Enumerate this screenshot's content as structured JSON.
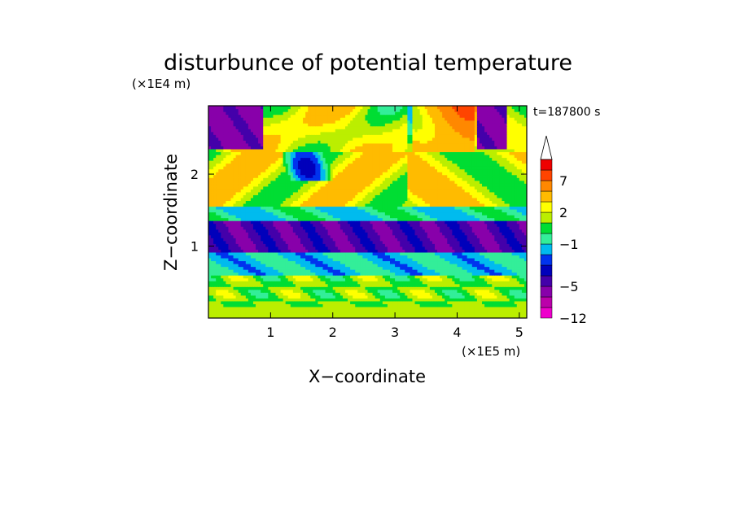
{
  "chart_data": {
    "type": "heatmap",
    "title": "disturbunce of potential temperature",
    "xlabel": "X−coordinate",
    "ylabel": "Z−coordinate",
    "x_unit": "(×1E5 m)",
    "y_unit": "(×1E4 m)",
    "time_label": "t=187800 s",
    "xlim": [
      0,
      5.12
    ],
    "ylim": [
      0,
      2.95
    ],
    "x_ticks": [
      1,
      2,
      3,
      4,
      5
    ],
    "x_tick_labels": [
      "1",
      "2",
      "3",
      "4",
      "5"
    ],
    "y_ticks": [
      1,
      2
    ],
    "y_tick_labels": [
      "1",
      "2"
    ],
    "colorbar": {
      "levels": [
        -12,
        -9,
        -7,
        -5,
        -4,
        -3,
        -2,
        -1,
        0,
        1,
        2,
        3,
        5,
        7,
        9,
        11
      ],
      "tick_labels": [
        "−12",
        "−5",
        "−1",
        "2",
        "7"
      ],
      "tick_values": [
        -12,
        -5,
        -1,
        2,
        7
      ],
      "colors": [
        "#ee00cc",
        "#bb00aa",
        "#8800aa",
        "#4400aa",
        "#0000bb",
        "#0033ee",
        "#00bbee",
        "#33ee99",
        "#00dd33",
        "#bbee00",
        "#ffff00",
        "#ffbb00",
        "#ff8800",
        "#ff4400",
        "#ee0000",
        "#ffaaaa",
        "#ffffff"
      ],
      "extend_top": true
    },
    "field_description_bands": [
      {
        "z_range": [
          0,
          0.15
        ],
        "dominant_value": 1.5
      },
      {
        "z_range": [
          0.15,
          0.6
        ],
        "dominant_value": 1.0
      },
      {
        "z_range": [
          0.6,
          0.9
        ],
        "dominant_value": -1.5
      },
      {
        "z_range": [
          0.9,
          1.35
        ],
        "dominant_value": -4.5
      },
      {
        "z_range": [
          1.35,
          1.55
        ],
        "dominant_value": -0.5
      },
      {
        "z_range": [
          1.55,
          2.3
        ],
        "dominant_value": 3.0
      },
      {
        "z_range": [
          2.3,
          2.95
        ],
        "dominant_value": 4.0
      }
    ]
  }
}
